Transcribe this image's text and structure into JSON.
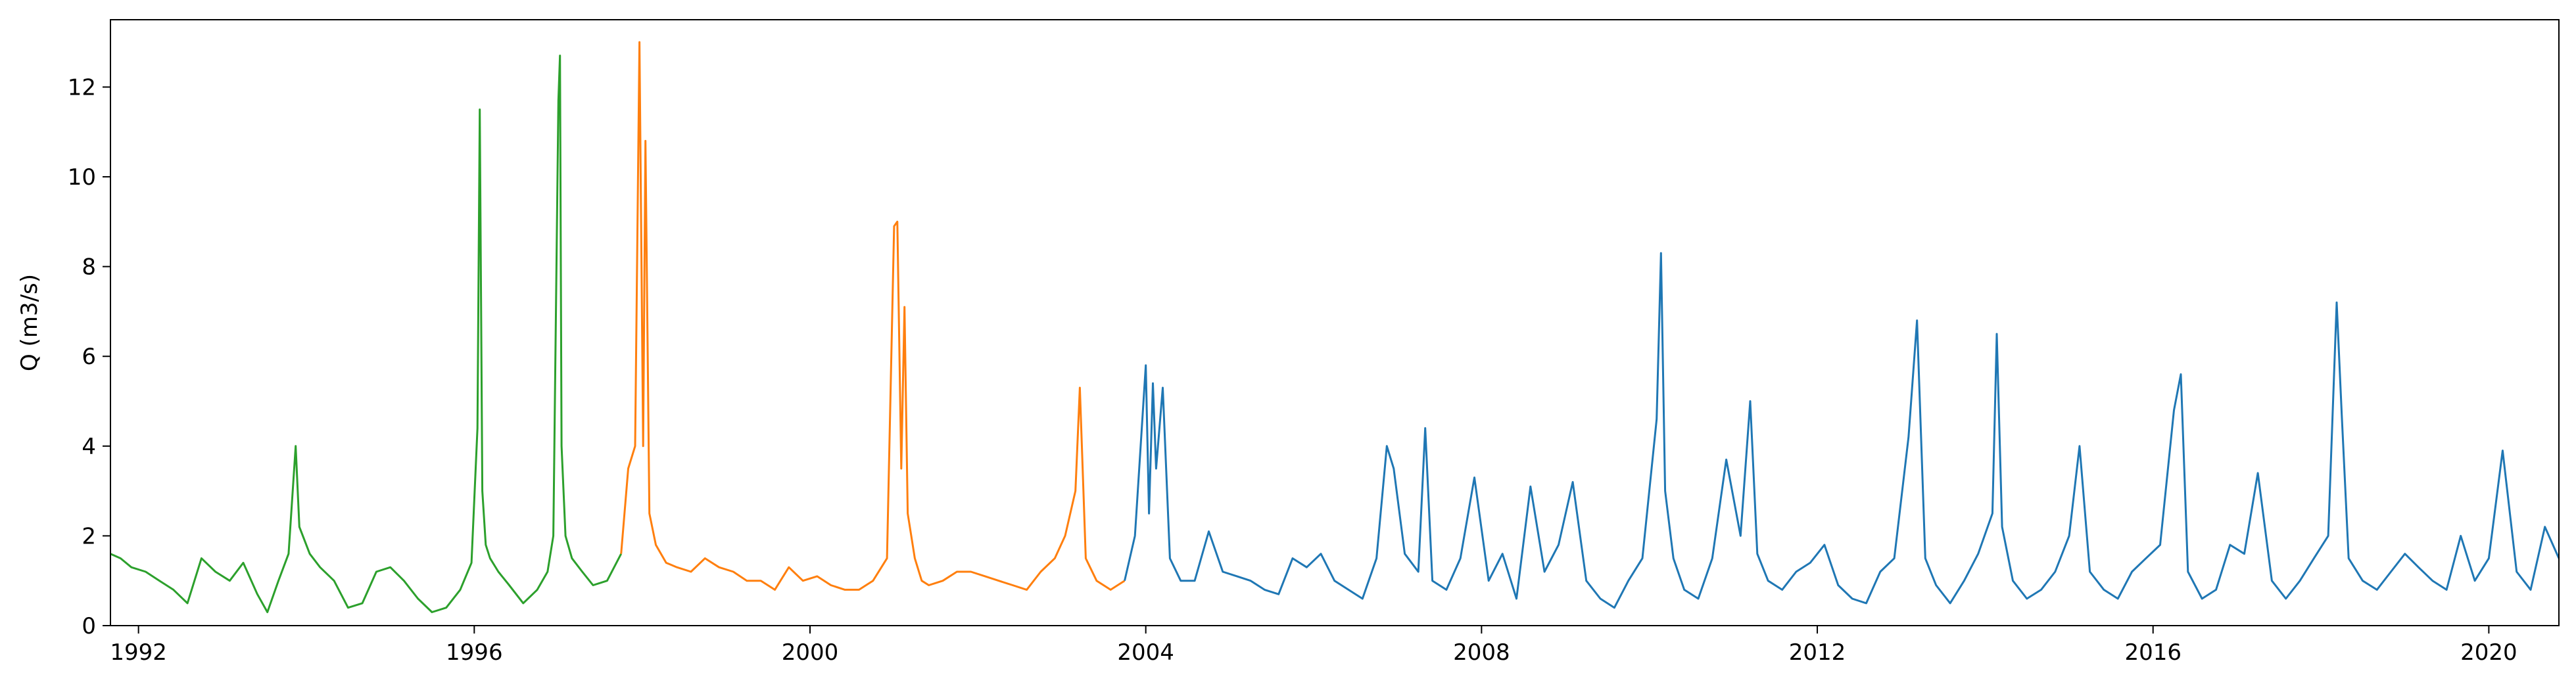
{
  "chart_data": {
    "type": "line",
    "title": "",
    "xlabel": "",
    "ylabel": "Q (m3/s)",
    "xlim": [
      "1991-09-01",
      "2020-11-01"
    ],
    "ylim": [
      0,
      13.5
    ],
    "xticks": [
      "1992",
      "1996",
      "2000",
      "2004",
      "2008",
      "2012",
      "2016",
      "2020"
    ],
    "yticks": [
      0,
      2,
      4,
      6,
      8,
      10,
      12
    ],
    "grid": false,
    "legend": "none",
    "series": [
      {
        "color": "#2ca02c",
        "x": [
          "1991-09-01",
          "1991-10-15",
          "1991-12-01",
          "1992-02-01",
          "1992-04-01",
          "1992-06-01",
          "1992-08-01",
          "1992-10-01",
          "1992-12-01",
          "1993-02-01",
          "1993-04-01",
          "1993-06-01",
          "1993-07-15",
          "1993-09-01",
          "1993-10-15",
          "1993-11-15",
          "1993-12-01",
          "1994-01-15",
          "1994-03-01",
          "1994-05-01",
          "1994-07-01",
          "1994-09-01",
          "1994-11-01",
          "1995-01-01",
          "1995-03-01",
          "1995-05-01",
          "1995-07-01",
          "1995-09-01",
          "1995-11-01",
          "1995-12-20",
          "1996-01-15",
          "1996-01-25",
          "1996-02-05",
          "1996-02-20",
          "1996-03-10",
          "1996-04-15",
          "1996-06-01",
          "1996-08-01",
          "1996-10-01",
          "1996-11-15",
          "1996-12-10",
          "1997-01-01",
          "1997-01-08",
          "1997-01-15",
          "1997-02-01",
          "1997-03-01",
          "1997-04-15",
          "1997-06-01",
          "1997-08-01",
          "1997-10-01"
        ],
        "y": [
          1.6,
          1.5,
          1.3,
          1.2,
          1.0,
          0.8,
          0.5,
          1.5,
          1.2,
          1.0,
          1.4,
          0.7,
          0.3,
          1.0,
          1.6,
          4.0,
          2.2,
          1.6,
          1.3,
          1.0,
          0.4,
          0.5,
          1.2,
          1.3,
          1.0,
          0.6,
          0.3,
          0.4,
          0.8,
          1.4,
          4.4,
          11.5,
          3.0,
          1.8,
          1.5,
          1.2,
          0.9,
          0.5,
          0.8,
          1.2,
          2.0,
          11.7,
          12.7,
          4.0,
          2.0,
          1.5,
          1.2,
          0.9,
          1.0,
          1.6
        ]
      },
      {
        "color": "#ff7f0e",
        "x": [
          "1997-10-01",
          "1997-11-01",
          "1997-12-01",
          "1997-12-20",
          "1998-01-05",
          "1998-01-15",
          "1998-02-01",
          "1998-03-01",
          "1998-04-15",
          "1998-06-01",
          "1998-08-01",
          "1998-10-01",
          "1998-12-01",
          "1999-02-01",
          "1999-04-01",
          "1999-06-01",
          "1999-08-01",
          "1999-10-01",
          "1999-12-01",
          "2000-02-01",
          "2000-04-01",
          "2000-06-01",
          "2000-08-01",
          "2000-10-01",
          "2000-12-01",
          "2001-01-01",
          "2001-01-15",
          "2001-02-01",
          "2001-02-15",
          "2001-03-01",
          "2001-04-01",
          "2001-05-01",
          "2001-06-01",
          "2001-08-01",
          "2001-10-01",
          "2001-12-01",
          "2002-02-01",
          "2002-04-01",
          "2002-06-01",
          "2002-08-01",
          "2002-10-01",
          "2002-12-01",
          "2003-01-15",
          "2003-03-01",
          "2003-03-20",
          "2003-04-15",
          "2003-06-01",
          "2003-08-01",
          "2003-10-01"
        ],
        "y": [
          1.6,
          3.5,
          4.0,
          13.0,
          4.0,
          10.8,
          2.5,
          1.8,
          1.4,
          1.3,
          1.2,
          1.5,
          1.3,
          1.2,
          1.0,
          1.0,
          0.8,
          1.3,
          1.0,
          1.1,
          0.9,
          0.8,
          0.8,
          1.0,
          1.5,
          8.9,
          9.0,
          3.5,
          7.1,
          2.5,
          1.5,
          1.0,
          0.9,
          1.0,
          1.2,
          1.2,
          1.1,
          1.0,
          0.9,
          0.8,
          1.2,
          1.5,
          2.0,
          3.0,
          5.3,
          1.5,
          1.0,
          0.8,
          1.0
        ]
      },
      {
        "color": "#1f77b4",
        "x": [
          "2003-10-01",
          "2003-11-15",
          "2004-01-01",
          "2004-01-15",
          "2004-02-01",
          "2004-02-15",
          "2004-03-15",
          "2004-04-15",
          "2004-06-01",
          "2004-08-01",
          "2004-10-01",
          "2004-12-01",
          "2005-02-01",
          "2005-04-01",
          "2005-06-01",
          "2005-08-01",
          "2005-10-01",
          "2005-12-01",
          "2006-02-01",
          "2006-04-01",
          "2006-06-01",
          "2006-08-01",
          "2006-10-01",
          "2006-11-15",
          "2006-12-15",
          "2007-02-01",
          "2007-04-01",
          "2007-05-01",
          "2007-06-01",
          "2007-08-01",
          "2007-10-01",
          "2007-12-01",
          "2008-02-01",
          "2008-04-01",
          "2008-06-01",
          "2008-08-01",
          "2008-10-01",
          "2008-12-01",
          "2009-02-01",
          "2009-04-01",
          "2009-06-01",
          "2009-08-01",
          "2009-10-01",
          "2009-12-01",
          "2010-02-01",
          "2010-02-20",
          "2010-03-10",
          "2010-04-15",
          "2010-06-01",
          "2010-08-01",
          "2010-10-01",
          "2010-12-01",
          "2011-02-01",
          "2011-03-15",
          "2011-04-15",
          "2011-06-01",
          "2011-08-01",
          "2011-10-01",
          "2011-12-01",
          "2012-02-01",
          "2012-04-01",
          "2012-06-01",
          "2012-08-01",
          "2012-10-01",
          "2012-12-01",
          "2013-02-01",
          "2013-03-10",
          "2013-04-15",
          "2013-06-01",
          "2013-08-01",
          "2013-10-01",
          "2013-12-01",
          "2014-02-01",
          "2014-02-20",
          "2014-03-15",
          "2014-05-01",
          "2014-07-01",
          "2014-09-01",
          "2014-11-01",
          "2015-01-01",
          "2015-02-15",
          "2015-04-01",
          "2015-06-01",
          "2015-08-01",
          "2015-10-01",
          "2015-12-01",
          "2016-02-01",
          "2016-04-01",
          "2016-05-01",
          "2016-06-01",
          "2016-08-01",
          "2016-10-01",
          "2016-12-01",
          "2017-02-01",
          "2017-04-01",
          "2017-06-01",
          "2017-08-01",
          "2017-10-01",
          "2017-12-01",
          "2018-02-01",
          "2018-03-10",
          "2018-04-01",
          "2018-05-01",
          "2018-07-01",
          "2018-09-01",
          "2018-11-01",
          "2019-01-01",
          "2019-03-01",
          "2019-05-01",
          "2019-07-01",
          "2019-09-01",
          "2019-11-01",
          "2020-01-01",
          "2020-03-01",
          "2020-05-01",
          "2020-07-01",
          "2020-09-01",
          "2020-11-01"
        ],
        "y": [
          1.0,
          2.0,
          5.8,
          2.5,
          5.4,
          3.5,
          5.3,
          1.5,
          1.0,
          1.0,
          2.1,
          1.2,
          1.1,
          1.0,
          0.8,
          0.7,
          1.5,
          1.3,
          1.6,
          1.0,
          0.8,
          0.6,
          1.5,
          4.0,
          3.5,
          1.6,
          1.2,
          4.4,
          1.0,
          0.8,
          1.5,
          3.3,
          1.0,
          1.6,
          0.6,
          3.1,
          1.2,
          1.8,
          3.2,
          1.0,
          0.6,
          0.4,
          1.0,
          1.5,
          4.6,
          8.3,
          3.0,
          1.5,
          0.8,
          0.6,
          1.5,
          3.7,
          2.0,
          5.0,
          1.6,
          1.0,
          0.8,
          1.2,
          1.4,
          1.8,
          0.9,
          0.6,
          0.5,
          1.2,
          1.5,
          4.2,
          6.8,
          1.5,
          0.9,
          0.5,
          1.0,
          1.6,
          2.5,
          6.5,
          2.2,
          1.0,
          0.6,
          0.8,
          1.2,
          2.0,
          4.0,
          1.2,
          0.8,
          0.6,
          1.2,
          1.5,
          1.8,
          4.8,
          5.6,
          1.2,
          0.6,
          0.8,
          1.8,
          1.6,
          3.4,
          1.0,
          0.6,
          1.0,
          1.5,
          2.0,
          7.2,
          4.7,
          1.5,
          1.0,
          0.8,
          1.2,
          1.6,
          1.3,
          1.0,
          0.8,
          2.0,
          1.0,
          1.5,
          3.9,
          1.2,
          0.8,
          2.2,
          1.5
        ]
      }
    ]
  }
}
